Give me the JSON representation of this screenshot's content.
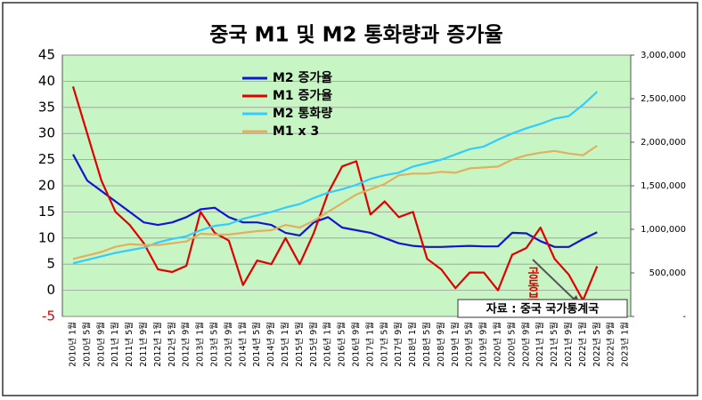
{
  "chart_data": {
    "type": "line",
    "title": "중국 M1 및 M2 통화량과 증가율",
    "annotations": [
      "자료 : 중국 국가통계국",
      "공동부유"
    ],
    "categories": [
      "2010년 1월",
      "2010년 5월",
      "2010년 9월",
      "2011년 1월",
      "2011년 5월",
      "2011년 9월",
      "2012년 1월",
      "2012년 5월",
      "2012년 9월",
      "2013년 1월",
      "2013년 5월",
      "2013년 9월",
      "2014년 1월",
      "2014년 5월",
      "2014년 9월",
      "2015년 1월",
      "2015년 5월",
      "2015년 9월",
      "2016년 1월",
      "2016년 5월",
      "2016년 9월",
      "2017년 1월",
      "2017년 5월",
      "2017년 9월",
      "2018년 1월",
      "2018년 5월",
      "2018년 9월",
      "2019년 1월",
      "2019년 5월",
      "2019년 9월",
      "2020년 1월",
      "2020년 5월",
      "2020년 9월",
      "2021년 1월",
      "2021년 5월",
      "2021년 9월",
      "2022년 1월",
      "2022년 5월",
      "2022년 9월",
      "2023년 1월"
    ],
    "ylim": [
      -5,
      45
    ],
    "yticks": [
      -5,
      0,
      5,
      10,
      15,
      20,
      25,
      30,
      35,
      40,
      45
    ],
    "y2lim": [
      0,
      3000000
    ],
    "y2ticks": [
      {
        "value": 0,
        "label": "-"
      },
      {
        "value": 500000,
        "label": "500,000"
      },
      {
        "value": 1000000,
        "label": "1,000,000"
      },
      {
        "value": 1500000,
        "label": "1,500,000"
      },
      {
        "value": 2000000,
        "label": "2,000,000"
      },
      {
        "value": 2500000,
        "label": "2,500,000"
      },
      {
        "value": 3000000,
        "label": "3,000,000"
      }
    ],
    "grid": true,
    "series": [
      {
        "name": "M2 증가율",
        "color": "#1414d2",
        "values": [
          26,
          21,
          19,
          17,
          15,
          13,
          12.5,
          13,
          14,
          15.5,
          15.8,
          14,
          13,
          13,
          12.5,
          11,
          10.5,
          13,
          14,
          12,
          11.5,
          11,
          10,
          9,
          8.5,
          8.3,
          8.3,
          8.4,
          8.5,
          8.4,
          8.4,
          11,
          10.9,
          9.4,
          8.3,
          8.3,
          9.8,
          11.1,
          null,
          null
        ]
      },
      {
        "name": "M1 증가율",
        "color": "#e00000",
        "values": [
          39,
          30,
          21,
          15,
          12.5,
          9,
          4,
          3.5,
          4.7,
          15,
          11,
          9.5,
          1,
          5.7,
          5,
          10,
          5,
          11,
          18.6,
          23.7,
          24.7,
          14.5,
          17,
          14,
          15,
          6,
          4,
          0.4,
          3.4,
          3.4,
          0,
          6.8,
          8.1,
          12,
          6,
          3,
          -1.9,
          4.6,
          null,
          null
        ]
      },
      {
        "name": "M2 통화량",
        "color": "#33ccff",
        "axis": "y2",
        "values": [
          610000,
          650000,
          690000,
          730000,
          760000,
          790000,
          850000,
          890000,
          920000,
          990000,
          1040000,
          1060000,
          1120000,
          1160000,
          1200000,
          1250000,
          1290000,
          1360000,
          1420000,
          1460000,
          1510000,
          1580000,
          1620000,
          1650000,
          1720000,
          1760000,
          1800000,
          1860000,
          1920000,
          1950000,
          2030000,
          2100000,
          2160000,
          2210000,
          2270000,
          2300000,
          2430000,
          2580000,
          null,
          null
        ]
      },
      {
        "name": "M1 x 3",
        "color": "#e0b060",
        "axis": "y2",
        "values": [
          660000,
          700000,
          740000,
          800000,
          830000,
          820000,
          820000,
          840000,
          860000,
          950000,
          940000,
          940000,
          960000,
          980000,
          990000,
          1050000,
          1020000,
          1100000,
          1200000,
          1300000,
          1400000,
          1460000,
          1520000,
          1620000,
          1640000,
          1640000,
          1660000,
          1650000,
          1700000,
          1710000,
          1720000,
          1800000,
          1850000,
          1880000,
          1900000,
          1870000,
          1850000,
          1960000,
          null,
          null
        ]
      }
    ]
  }
}
